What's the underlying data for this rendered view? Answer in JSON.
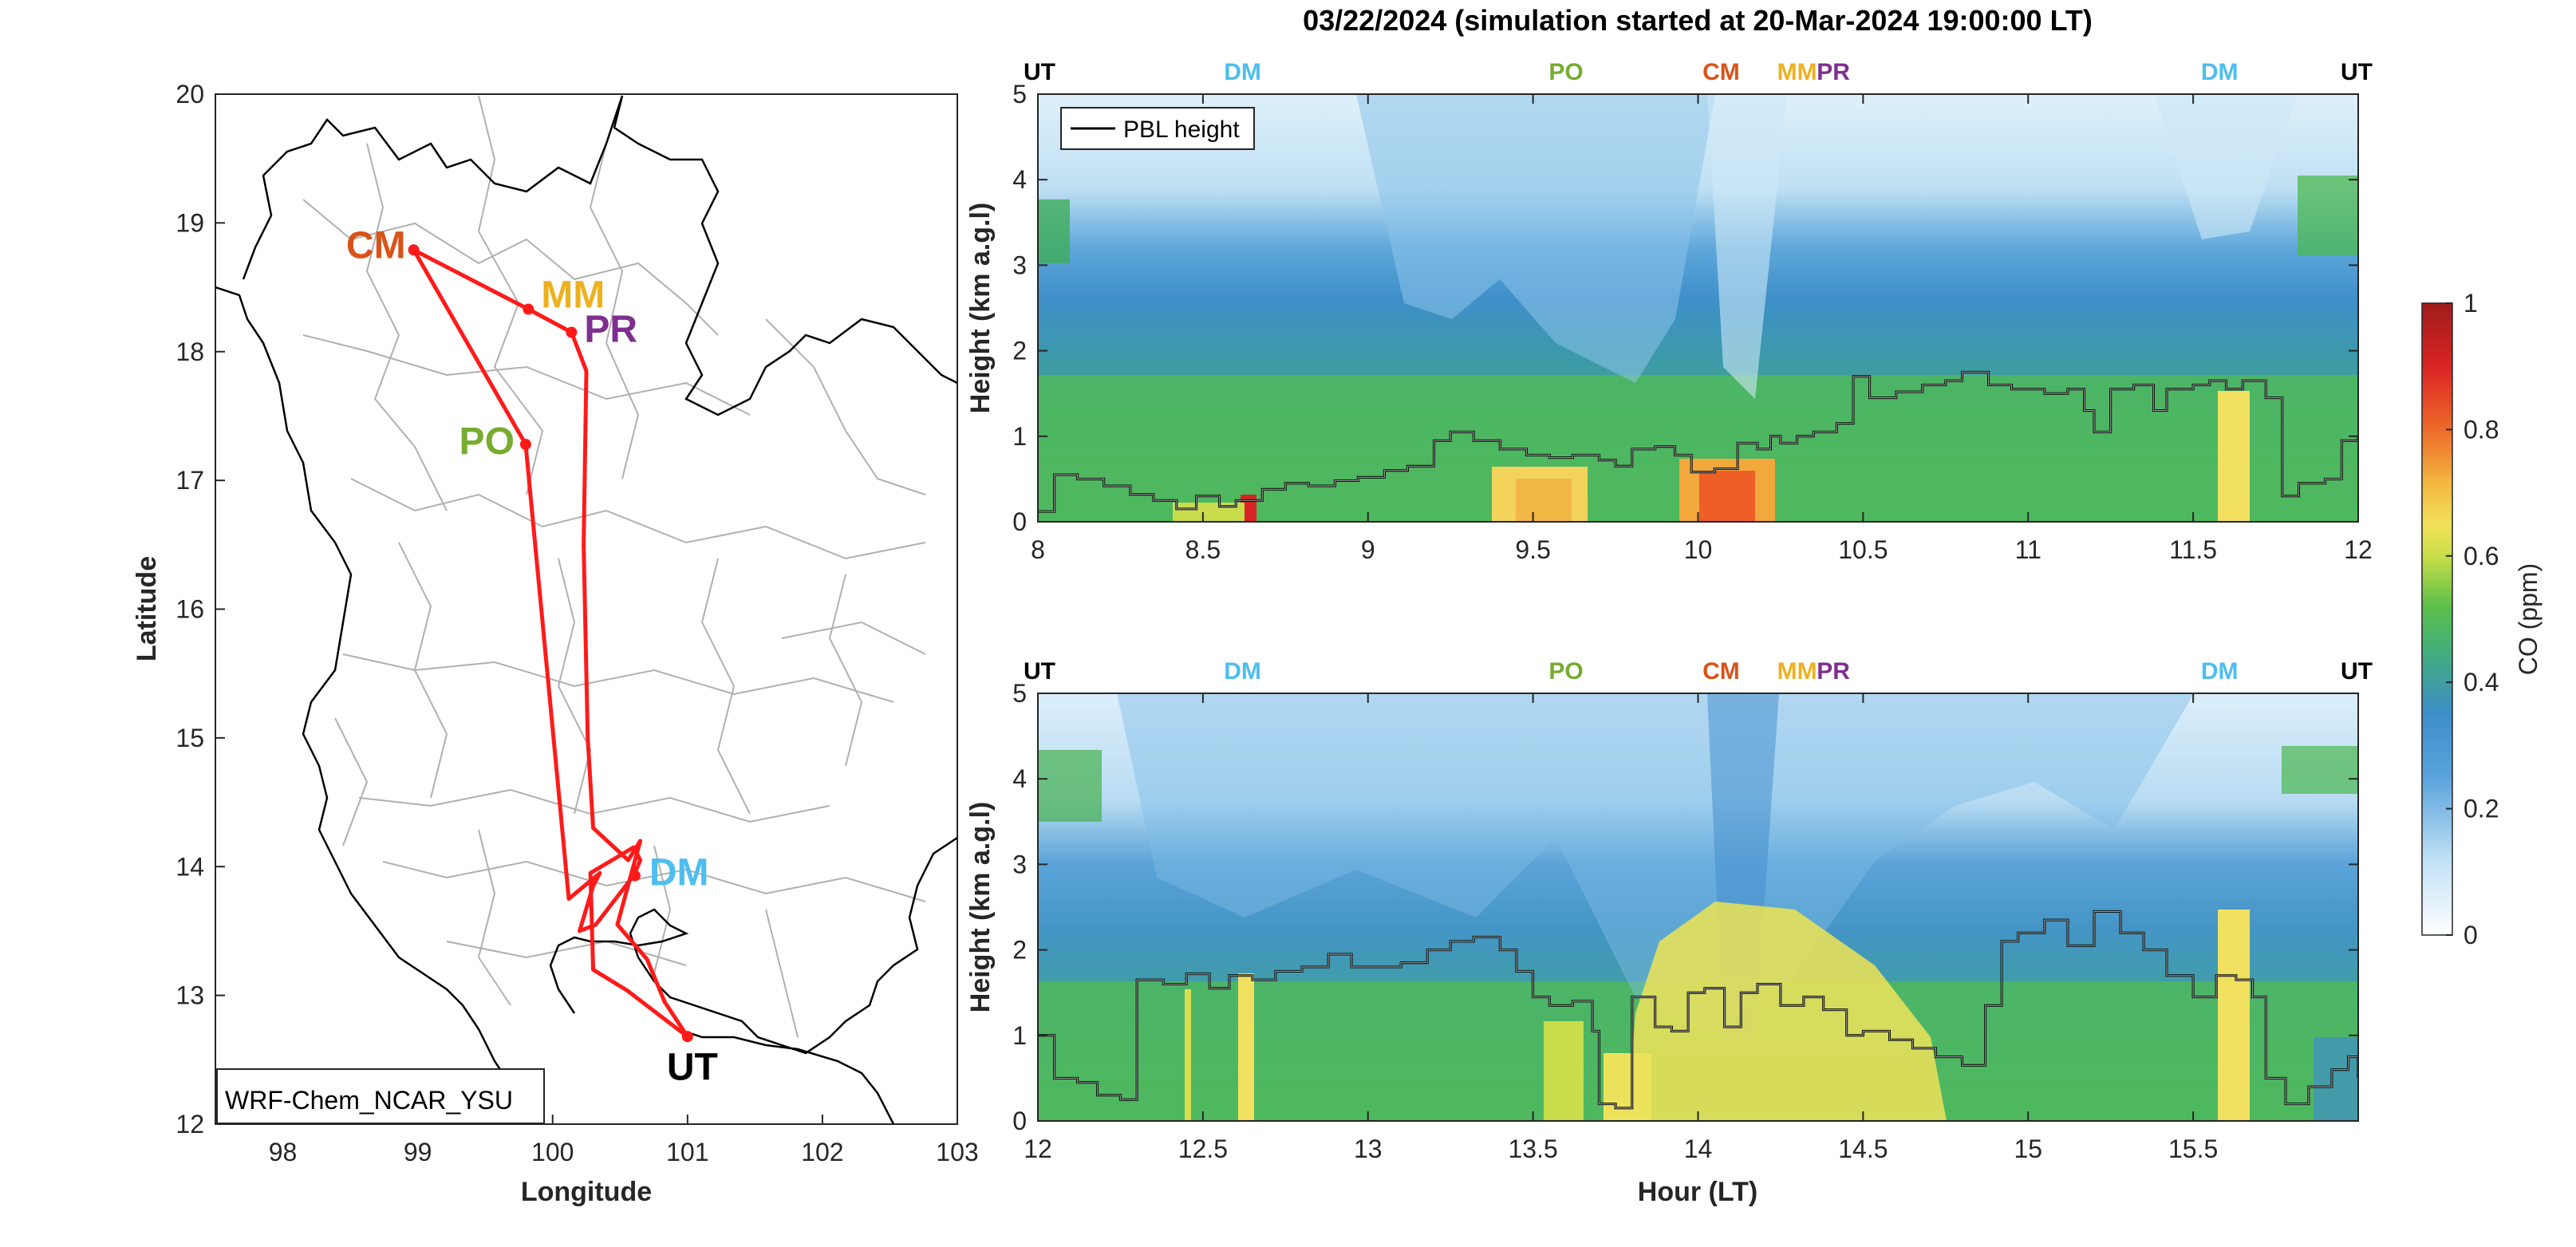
{
  "figure": {
    "title": "03/22/2024 (simulation started at 20-Mar-2024 19:00:00 LT)",
    "map_model_label": "WRF-Chem_NCAR_YSU"
  },
  "colors": {
    "UT": "#000000",
    "DM": "#4DBEEE",
    "PO": "#77AC30",
    "CM": "#D95319",
    "MM": "#EDB120",
    "PR": "#7E2F8E",
    "track": "#ff1a1a",
    "pbl": "#000000"
  },
  "chart_data": [
    {
      "type": "line",
      "name": "map",
      "xlabel": "Longitude",
      "ylabel": "Latitude",
      "xlim": [
        97.5,
        103
      ],
      "ylim": [
        12,
        20
      ],
      "xticks": [
        "98",
        "99",
        "100",
        "101",
        "102",
        "103"
      ],
      "yticks": [
        "12",
        "13",
        "14",
        "15",
        "16",
        "17",
        "18",
        "19",
        "20"
      ],
      "locations": [
        {
          "label": "CM",
          "lon": 98.97,
          "lat": 18.79
        },
        {
          "label": "MM",
          "lon": 99.82,
          "lat": 18.33
        },
        {
          "label": "PR",
          "lon": 100.14,
          "lat": 18.15
        },
        {
          "label": "PO",
          "lon": 99.8,
          "lat": 17.28
        },
        {
          "label": "DM",
          "lon": 100.61,
          "lat": 13.93
        },
        {
          "label": "UT",
          "lon": 101.0,
          "lat": 12.68
        }
      ],
      "track": [
        [
          101.0,
          12.68
        ],
        [
          100.55,
          13.04
        ],
        [
          100.3,
          13.2
        ],
        [
          100.28,
          13.95
        ],
        [
          100.6,
          14.15
        ],
        [
          100.65,
          14.05
        ],
        [
          100.6,
          13.93
        ],
        [
          100.32,
          13.55
        ],
        [
          100.2,
          13.5
        ],
        [
          100.3,
          13.85
        ],
        [
          100.35,
          13.95
        ],
        [
          100.12,
          13.75
        ],
        [
          99.8,
          17.28
        ],
        [
          98.97,
          18.79
        ],
        [
          99.82,
          18.33
        ],
        [
          100.14,
          18.15
        ],
        [
          100.25,
          17.85
        ],
        [
          100.23,
          16.5
        ],
        [
          100.26,
          15.0
        ],
        [
          100.3,
          14.3
        ],
        [
          100.56,
          14.05
        ],
        [
          100.65,
          14.2
        ],
        [
          100.48,
          13.55
        ],
        [
          100.7,
          13.28
        ],
        [
          100.83,
          12.95
        ],
        [
          101.0,
          12.68
        ]
      ]
    },
    {
      "type": "heatmap",
      "name": "top-panel",
      "xlabel": "",
      "ylabel": "Height (km a.g.l)",
      "xlim": [
        8,
        12
      ],
      "ylim": [
        0,
        5
      ],
      "xticks": [
        "8",
        "8.5",
        "9",
        "9.5",
        "10",
        "10.5",
        "11",
        "11.5",
        "12"
      ],
      "yticks": [
        "0",
        "1",
        "2",
        "3",
        "4",
        "5"
      ],
      "top_labels": [
        {
          "label": "UT",
          "x": 8.0
        },
        {
          "label": "DM",
          "x": 8.62
        },
        {
          "label": "PO",
          "x": 9.6
        },
        {
          "label": "CM",
          "x": 10.07
        },
        {
          "label": "MM",
          "x": 10.3
        },
        {
          "label": "PR",
          "x": 10.41
        },
        {
          "label": "DM",
          "x": 11.58
        },
        {
          "label": "UT",
          "x": 11.96
        }
      ],
      "legend": "PBL height",
      "pbl": [
        [
          8.0,
          0.12
        ],
        [
          8.05,
          0.55
        ],
        [
          8.12,
          0.5
        ],
        [
          8.2,
          0.42
        ],
        [
          8.28,
          0.32
        ],
        [
          8.35,
          0.25
        ],
        [
          8.42,
          0.15
        ],
        [
          8.48,
          0.3
        ],
        [
          8.55,
          0.18
        ],
        [
          8.6,
          0.25
        ],
        [
          8.68,
          0.38
        ],
        [
          8.75,
          0.45
        ],
        [
          8.82,
          0.42
        ],
        [
          8.9,
          0.48
        ],
        [
          8.97,
          0.52
        ],
        [
          9.05,
          0.6
        ],
        [
          9.12,
          0.65
        ],
        [
          9.2,
          0.95
        ],
        [
          9.25,
          1.05
        ],
        [
          9.32,
          0.95
        ],
        [
          9.4,
          0.85
        ],
        [
          9.48,
          0.78
        ],
        [
          9.55,
          0.75
        ],
        [
          9.62,
          0.78
        ],
        [
          9.7,
          0.72
        ],
        [
          9.75,
          0.65
        ],
        [
          9.8,
          0.85
        ],
        [
          9.87,
          0.88
        ],
        [
          9.93,
          0.78
        ],
        [
          9.98,
          0.58
        ],
        [
          10.05,
          0.62
        ],
        [
          10.12,
          0.92
        ],
        [
          10.18,
          0.85
        ],
        [
          10.22,
          1.0
        ],
        [
          10.25,
          0.92
        ],
        [
          10.3,
          1.0
        ],
        [
          10.35,
          1.05
        ],
        [
          10.42,
          1.15
        ],
        [
          10.47,
          1.7
        ],
        [
          10.52,
          1.45
        ],
        [
          10.6,
          1.52
        ],
        [
          10.68,
          1.6
        ],
        [
          10.75,
          1.65
        ],
        [
          10.8,
          1.75
        ],
        [
          10.88,
          1.6
        ],
        [
          10.95,
          1.55
        ],
        [
          11.05,
          1.5
        ],
        [
          11.12,
          1.55
        ],
        [
          11.17,
          1.3
        ],
        [
          11.2,
          1.05
        ],
        [
          11.25,
          1.55
        ],
        [
          11.32,
          1.6
        ],
        [
          11.38,
          1.3
        ],
        [
          11.42,
          1.55
        ],
        [
          11.5,
          1.6
        ],
        [
          11.55,
          1.65
        ],
        [
          11.6,
          1.55
        ],
        [
          11.65,
          1.65
        ],
        [
          11.72,
          1.45
        ],
        [
          11.77,
          0.3
        ],
        [
          11.82,
          0.45
        ],
        [
          11.9,
          0.5
        ],
        [
          11.95,
          0.95
        ],
        [
          12.0,
          1.0
        ]
      ]
    },
    {
      "type": "heatmap",
      "name": "bottom-panel",
      "xlabel": "Hour (LT)",
      "ylabel": "Height (km a.g.l)",
      "xlim": [
        12,
        16
      ],
      "ylim": [
        0,
        5
      ],
      "xticks": [
        "12",
        "12.5",
        "13",
        "13.5",
        "14",
        "14.5",
        "15",
        "15.5"
      ],
      "yticks": [
        "0",
        "1",
        "2",
        "3",
        "4",
        "5"
      ],
      "top_labels": [
        {
          "label": "UT",
          "x": 12.0
        },
        {
          "label": "DM",
          "x": 12.62
        },
        {
          "label": "PO",
          "x": 13.6
        },
        {
          "label": "CM",
          "x": 14.07
        },
        {
          "label": "MM",
          "x": 14.3
        },
        {
          "label": "PR",
          "x": 14.41
        },
        {
          "label": "DM",
          "x": 15.58
        },
        {
          "label": "UT",
          "x": 15.96
        }
      ],
      "pbl": [
        [
          12.0,
          1.0
        ],
        [
          12.05,
          0.5
        ],
        [
          12.12,
          0.45
        ],
        [
          12.18,
          0.3
        ],
        [
          12.25,
          0.25
        ],
        [
          12.3,
          1.65
        ],
        [
          12.38,
          1.6
        ],
        [
          12.45,
          1.72
        ],
        [
          12.52,
          1.55
        ],
        [
          12.58,
          1.7
        ],
        [
          12.65,
          1.65
        ],
        [
          12.72,
          1.75
        ],
        [
          12.8,
          1.8
        ],
        [
          12.88,
          1.95
        ],
        [
          12.95,
          1.8
        ],
        [
          13.02,
          1.8
        ],
        [
          13.1,
          1.85
        ],
        [
          13.18,
          2.0
        ],
        [
          13.25,
          2.1
        ],
        [
          13.32,
          2.15
        ],
        [
          13.4,
          2.0
        ],
        [
          13.45,
          1.75
        ],
        [
          13.5,
          1.45
        ],
        [
          13.55,
          1.35
        ],
        [
          13.62,
          1.4
        ],
        [
          13.68,
          1.05
        ],
        [
          13.7,
          0.2
        ],
        [
          13.75,
          0.15
        ],
        [
          13.8,
          1.45
        ],
        [
          13.87,
          1.1
        ],
        [
          13.92,
          1.05
        ],
        [
          13.97,
          1.5
        ],
        [
          14.02,
          1.55
        ],
        [
          14.08,
          1.1
        ],
        [
          14.13,
          1.5
        ],
        [
          14.18,
          1.6
        ],
        [
          14.25,
          1.35
        ],
        [
          14.32,
          1.45
        ],
        [
          14.38,
          1.3
        ],
        [
          14.45,
          1.0
        ],
        [
          14.5,
          1.05
        ],
        [
          14.58,
          0.95
        ],
        [
          14.65,
          0.85
        ],
        [
          14.72,
          0.75
        ],
        [
          14.8,
          0.65
        ],
        [
          14.87,
          1.35
        ],
        [
          14.92,
          2.1
        ],
        [
          14.97,
          2.2
        ],
        [
          15.05,
          2.35
        ],
        [
          15.12,
          2.05
        ],
        [
          15.2,
          2.45
        ],
        [
          15.28,
          2.2
        ],
        [
          15.35,
          2.0
        ],
        [
          15.42,
          1.7
        ],
        [
          15.5,
          1.45
        ],
        [
          15.57,
          1.7
        ],
        [
          15.63,
          1.65
        ],
        [
          15.68,
          1.45
        ],
        [
          15.72,
          0.5
        ],
        [
          15.78,
          0.2
        ],
        [
          15.85,
          0.4
        ],
        [
          15.92,
          0.6
        ],
        [
          15.97,
          0.75
        ],
        [
          16.0,
          0.5
        ]
      ]
    },
    {
      "type": "heatmap",
      "name": "colorbar",
      "label": "CO (ppm)",
      "range": [
        0,
        1
      ],
      "ticks": [
        "0",
        "0.2",
        "0.4",
        "0.6",
        "0.8",
        "1"
      ]
    }
  ]
}
